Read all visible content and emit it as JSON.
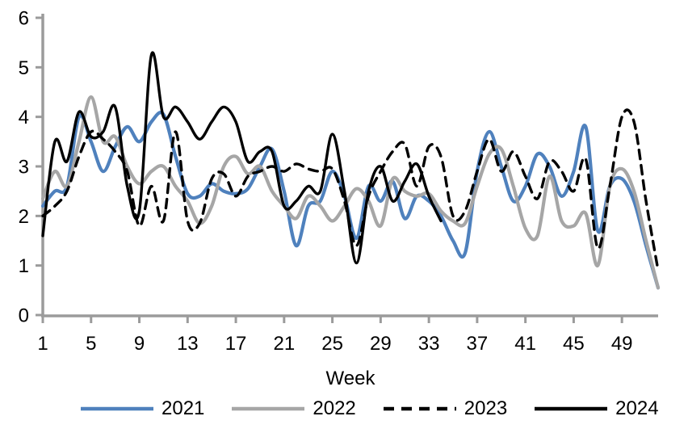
{
  "chart_data": {
    "type": "line",
    "title": "",
    "xlabel": "Week",
    "ylabel": "",
    "xlim": [
      1,
      52
    ],
    "ylim": [
      0,
      6
    ],
    "xticks": [
      1,
      5,
      9,
      13,
      17,
      21,
      25,
      29,
      33,
      37,
      41,
      45,
      49
    ],
    "yticks": [
      0,
      1,
      2,
      3,
      4,
      5,
      6
    ],
    "grid": false,
    "smooth_lines": true,
    "axis_color": "#9B9B9B",
    "tick_label_color": "#000000",
    "legend_position": "bottom",
    "series": [
      {
        "name": "2021",
        "color": "#4F81BD",
        "style": "solid",
        "start_week": 1,
        "values": [
          2.2,
          2.5,
          2.6,
          4.0,
          3.5,
          2.9,
          3.4,
          3.8,
          3.5,
          3.9,
          4.05,
          3.2,
          2.45,
          2.4,
          2.65,
          2.5,
          2.45,
          2.55,
          3.0,
          3.35,
          2.5,
          1.4,
          2.2,
          2.3,
          2.9,
          2.4,
          1.55,
          2.6,
          2.3,
          2.7,
          1.95,
          2.4,
          2.3,
          2.0,
          1.5,
          1.25,
          2.9,
          3.7,
          3.0,
          2.3,
          2.6,
          3.25,
          3.0,
          2.4,
          2.9,
          3.8,
          1.7,
          2.6,
          2.75,
          2.3,
          1.4,
          0.55
        ]
      },
      {
        "name": "2022",
        "color": "#A6A6A6",
        "style": "solid",
        "start_week": 1,
        "values": [
          2.35,
          2.9,
          2.6,
          3.5,
          4.4,
          3.5,
          3.6,
          3.0,
          2.65,
          2.9,
          3.0,
          2.6,
          2.3,
          1.85,
          2.2,
          3.0,
          3.2,
          2.85,
          3.0,
          2.5,
          2.2,
          1.95,
          2.4,
          2.2,
          1.9,
          2.2,
          2.55,
          2.3,
          1.8,
          2.75,
          2.5,
          2.4,
          2.45,
          2.1,
          1.9,
          1.85,
          2.6,
          3.25,
          3.35,
          2.6,
          1.75,
          1.6,
          2.8,
          1.9,
          1.8,
          2.05,
          1.0,
          2.6,
          2.95,
          2.5,
          1.5,
          0.55
        ]
      },
      {
        "name": "2023",
        "color": "#000000",
        "style": "dashed",
        "start_week": 1,
        "values": [
          2.0,
          2.2,
          2.5,
          3.2,
          3.7,
          3.55,
          3.3,
          2.9,
          1.8,
          2.6,
          1.9,
          3.7,
          1.9,
          1.85,
          2.75,
          2.85,
          2.4,
          2.8,
          2.9,
          3.0,
          2.9,
          3.05,
          2.95,
          2.9,
          2.95,
          2.3,
          1.4,
          2.4,
          2.9,
          3.3,
          3.45,
          2.6,
          3.4,
          3.2,
          2.0,
          2.1,
          2.9,
          3.55,
          2.9,
          3.3,
          2.8,
          2.35,
          3.1,
          2.9,
          2.5,
          3.15,
          1.35,
          2.6,
          4.0,
          3.9,
          2.3,
          0.9
        ]
      },
      {
        "name": "2024",
        "color": "#000000",
        "style": "solid",
        "start_week": 1,
        "values": [
          1.6,
          3.5,
          3.1,
          4.1,
          3.6,
          3.7,
          4.2,
          2.6,
          2.1,
          5.25,
          4.0,
          4.2,
          3.9,
          3.55,
          3.9,
          4.2,
          3.9,
          3.1,
          3.3,
          3.3,
          2.2,
          2.3,
          2.6,
          2.5,
          3.65,
          2.5,
          1.05,
          2.5,
          3.0,
          2.3,
          2.7,
          3.05,
          2.4,
          1.9
        ]
      }
    ]
  }
}
